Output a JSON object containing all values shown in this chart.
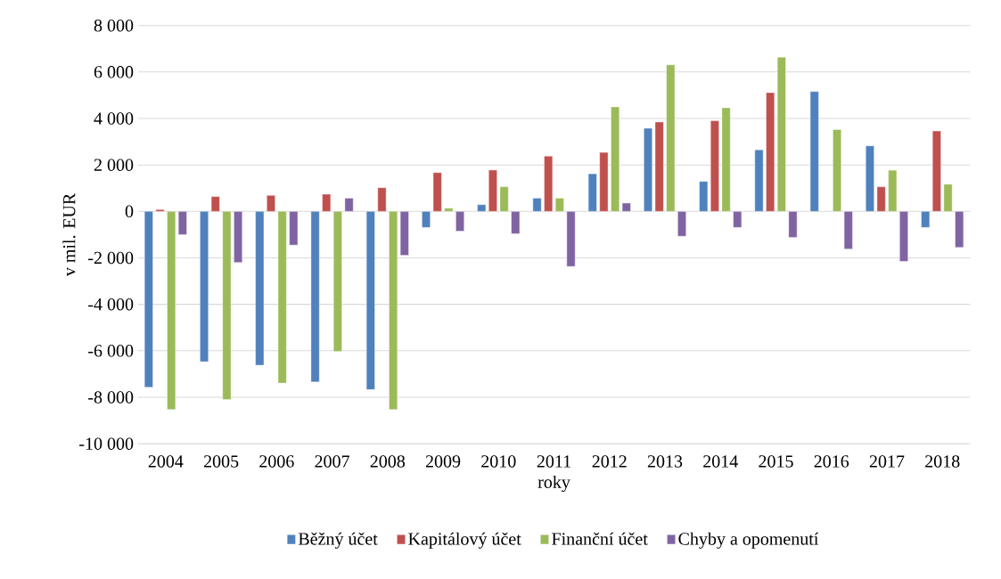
{
  "chart_data": {
    "type": "bar",
    "xlabel": "roky",
    "ylabel": "v mil. EUR",
    "categories": [
      "2004",
      "2005",
      "2006",
      "2007",
      "2008",
      "2009",
      "2010",
      "2011",
      "2012",
      "2013",
      "2014",
      "2015",
      "2016",
      "2017",
      "2018"
    ],
    "series": [
      {
        "name": "Běžný účet",
        "color": "#4f81bd",
        "values": [
          -7570,
          -6470,
          -6620,
          -7340,
          -7670,
          -690,
          290,
          570,
          1620,
          3580,
          1290,
          2650,
          5160,
          2820,
          -690
        ]
      },
      {
        "name": "Kapitálový účet",
        "color": "#c0504d",
        "values": [
          80,
          640,
          690,
          740,
          1020,
          1670,
          1780,
          2380,
          2540,
          3850,
          3900,
          5110,
          null,
          1060,
          3460
        ]
      },
      {
        "name": "Finanční účet",
        "color": "#9bbb59",
        "values": [
          -8530,
          -8100,
          -7390,
          -6030,
          -8530,
          140,
          1060,
          570,
          4500,
          6310,
          4460,
          6640,
          3520,
          1770,
          1170
        ]
      },
      {
        "name": "Chyby a opomenutí",
        "color": "#8064a2",
        "values": [
          -1000,
          -2200,
          -1450,
          570,
          -1890,
          -850,
          -960,
          -2370,
          360,
          -1070,
          -690,
          -1120,
          -1620,
          -2150,
          -1550
        ]
      }
    ],
    "ylim": [
      -10000,
      8000
    ],
    "yticks": [
      {
        "value": -10000,
        "label": "-10 000"
      },
      {
        "value": -8000,
        "label": "-8 000"
      },
      {
        "value": -6000,
        "label": "-6 000"
      },
      {
        "value": -4000,
        "label": "-4 000"
      },
      {
        "value": -2000,
        "label": "-2 000"
      },
      {
        "value": 0,
        "label": "0"
      },
      {
        "value": 2000,
        "label": "2 000"
      },
      {
        "value": 4000,
        "label": "4 000"
      },
      {
        "value": 6000,
        "label": "6 000"
      },
      {
        "value": 8000,
        "label": "8 000"
      }
    ],
    "grid": "y",
    "legend": "bottom"
  }
}
